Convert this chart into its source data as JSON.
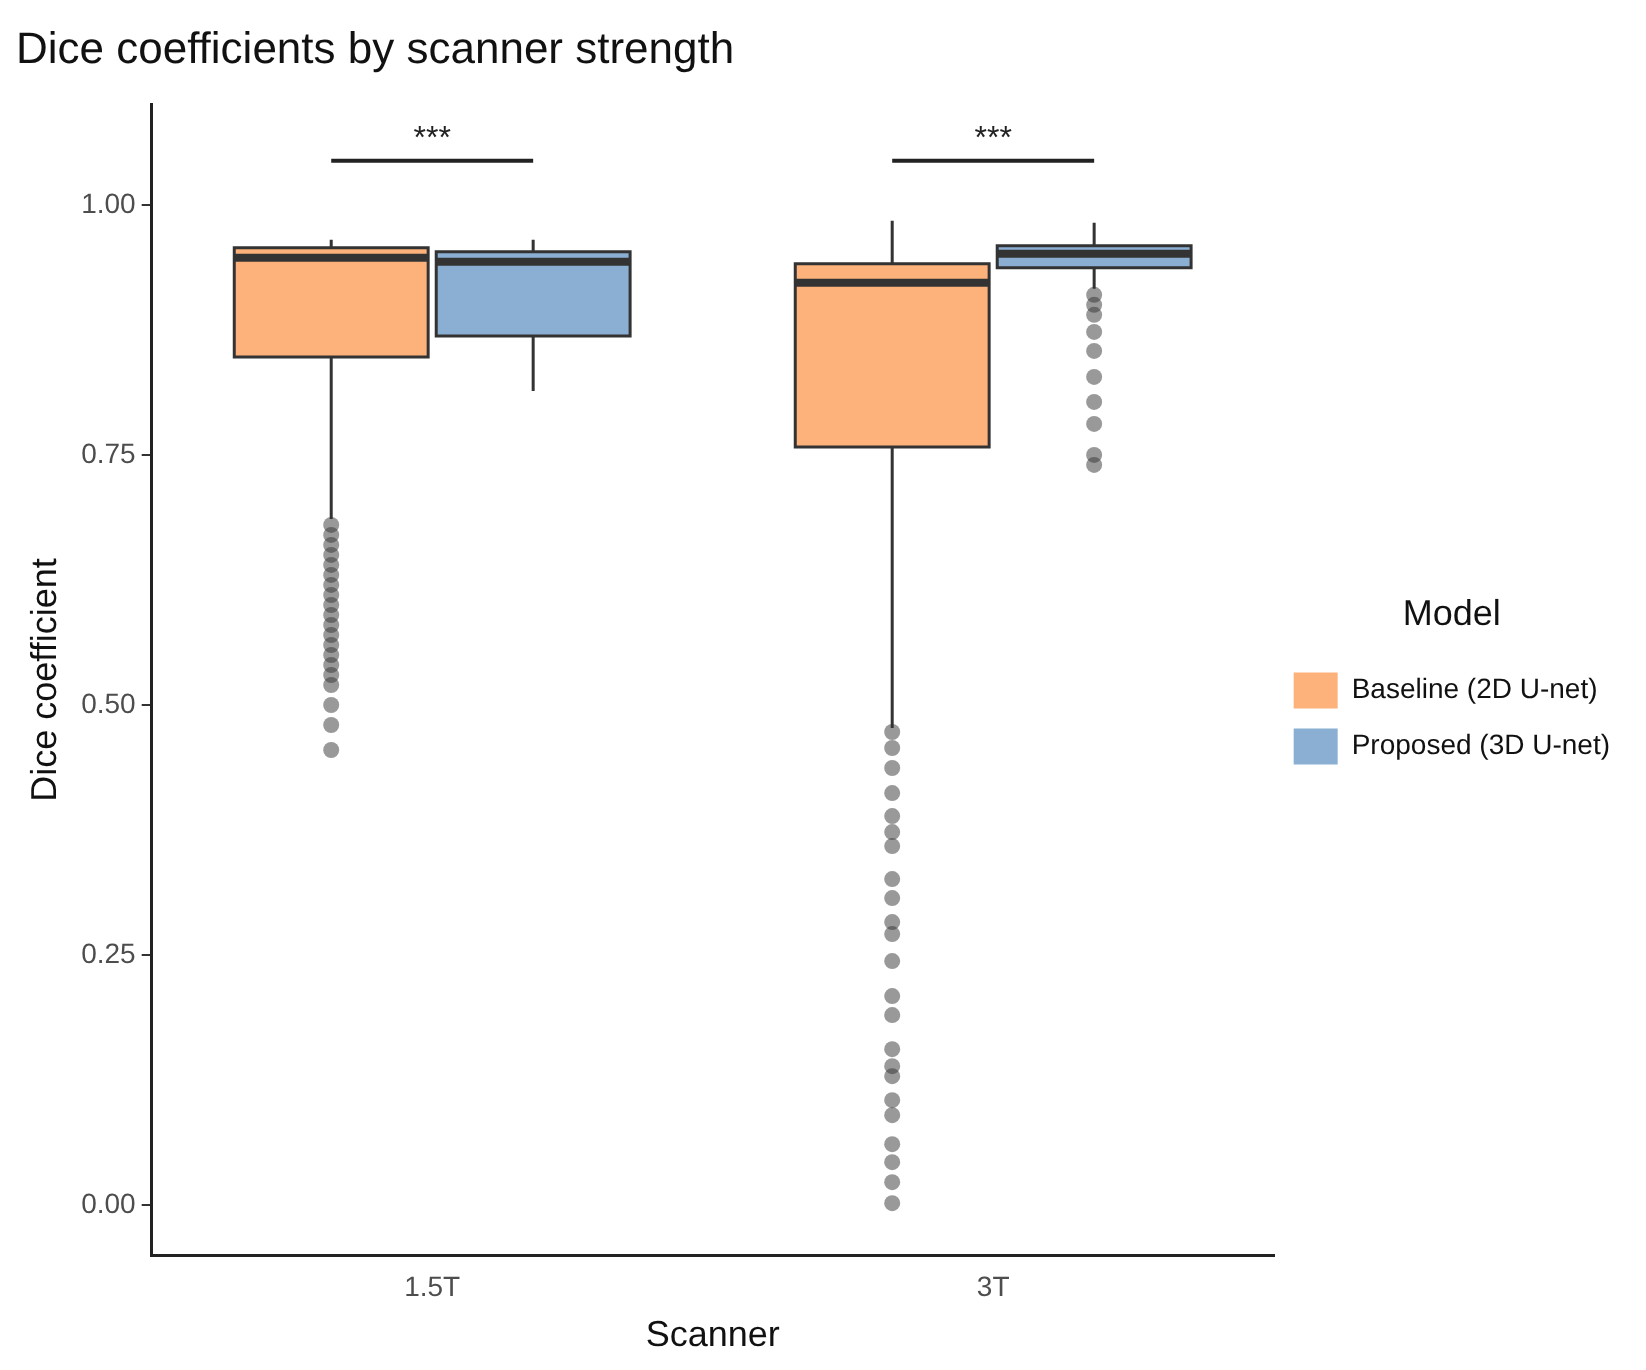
{
  "chart_data": {
    "type": "box",
    "title": "Dice coefficients by scanner strength",
    "xlabel": "Scanner",
    "ylabel": "Dice coefficient",
    "legend_title": "Model",
    "categories": [
      "1.5T",
      "3T"
    ],
    "series": [
      {
        "name": "Baseline (2D U-net)",
        "color": "#fdb27b",
        "boxes": [
          {
            "low": 0.686,
            "q1": 0.848,
            "median": 0.947,
            "q3": 0.957,
            "high": 0.965,
            "outliers": [
              0.68,
              0.67,
              0.66,
              0.65,
              0.64,
              0.63,
              0.62,
              0.61,
              0.6,
              0.59,
              0.58,
              0.57,
              0.56,
              0.55,
              0.54,
              0.53,
              0.52,
              0.5,
              0.48,
              0.455
            ]
          },
          {
            "low": 0.477,
            "q1": 0.758,
            "median": 0.922,
            "q3": 0.941,
            "high": 0.984,
            "outliers": [
              0.473,
              0.457,
              0.437,
              0.412,
              0.389,
              0.373,
              0.359,
              0.326,
              0.307,
              0.283,
              0.271,
              0.244,
              0.209,
              0.19,
              0.156,
              0.139,
              0.129,
              0.105,
              0.09,
              0.061,
              0.043,
              0.023,
              0.002
            ]
          }
        ]
      },
      {
        "name": "Proposed (3D U-net)",
        "color": "#8aafd3",
        "boxes": [
          {
            "low": 0.814,
            "q1": 0.869,
            "median": 0.943,
            "q3": 0.953,
            "high": 0.965
          },
          {
            "low": 0.916,
            "q1": 0.937,
            "median": 0.951,
            "q3": 0.959,
            "high": 0.982,
            "outliers": [
              0.91,
              0.9,
              0.89,
              0.873,
              0.854,
              0.828,
              0.803,
              0.781,
              0.75,
              0.74
            ]
          }
        ]
      }
    ],
    "ylim": [
      -0.05,
      1.1
    ],
    "yticks": [
      {
        "value": 0,
        "label": "0.00"
      },
      {
        "value": 0.25,
        "label": "0.25"
      },
      {
        "value": 0.5,
        "label": "0.50"
      },
      {
        "value": 0.75,
        "label": "0.75"
      },
      {
        "value": 1,
        "label": "1.00"
      }
    ],
    "annotations": [
      "***",
      "***"
    ],
    "grid": false,
    "legend": "right"
  }
}
